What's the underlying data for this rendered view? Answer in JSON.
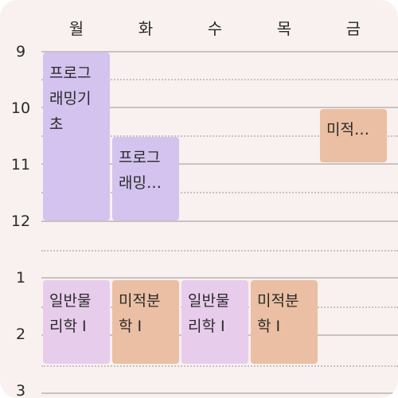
{
  "days": [
    "월",
    "화",
    "수",
    "목",
    "금"
  ],
  "hours": [
    "9",
    "10",
    "11",
    "12",
    "1",
    "2",
    "3"
  ],
  "events": [
    {
      "day": "월",
      "title": "프로그래밍기초",
      "color": "#d3c3ee"
    },
    {
      "day": "화",
      "title": "프로그래밍…",
      "color": "#d3c3ee"
    },
    {
      "day": "금",
      "title": "미적…",
      "color": "#ebbfa3"
    },
    {
      "day": "월",
      "title": "일반물리학 I",
      "color": "#e8ccec"
    },
    {
      "day": "화",
      "title": "미적분학 I",
      "color": "#ebbfa3"
    },
    {
      "day": "수",
      "title": "일반물리학 I",
      "color": "#e8ccec"
    },
    {
      "day": "목",
      "title": "미적분학 I",
      "color": "#ebbfa3"
    }
  ]
}
